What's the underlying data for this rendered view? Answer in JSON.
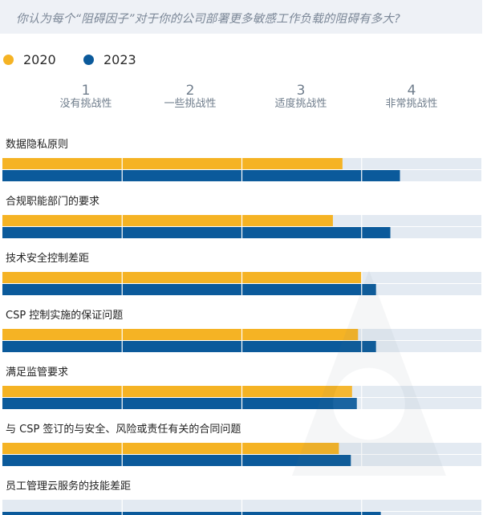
{
  "header": {
    "question": "你认为每个“阻碍因子”对于你的公司部署更多敏感工作负载的阻碍有多大?"
  },
  "legend": [
    {
      "label": "2020",
      "color": "#f5b324"
    },
    {
      "label": "2023",
      "color": "#0b5a9b"
    }
  ],
  "scale": [
    {
      "number": "1",
      "text": "没有挑战性"
    },
    {
      "number": "2",
      "text": "一些挑战性"
    },
    {
      "number": "3",
      "text": "适度挑战性"
    },
    {
      "number": "4",
      "text": "非常挑战性"
    }
  ],
  "chart_data": {
    "type": "bar",
    "orientation": "horizontal",
    "xlim": [
      0,
      4
    ],
    "grid": true,
    "legend_position": "top-left",
    "categories": [
      "数据隐私原则",
      "合规职能部门的要求",
      "技术安全控制差距",
      "CSP 控制实施的保证问题",
      "满足监管要求",
      "与 CSP 签订的与安全、风险或责任有关的合同问题",
      "员工管理云服务的技能差距"
    ],
    "series": [
      {
        "name": "2020",
        "color": "#f5b324",
        "values": [
          2.84,
          2.76,
          3.0,
          2.97,
          2.92,
          2.81,
          null
        ]
      },
      {
        "name": "2023",
        "color": "#0b5a9b",
        "values": [
          3.32,
          3.24,
          3.12,
          3.12,
          2.96,
          2.91,
          3.16
        ]
      }
    ]
  }
}
